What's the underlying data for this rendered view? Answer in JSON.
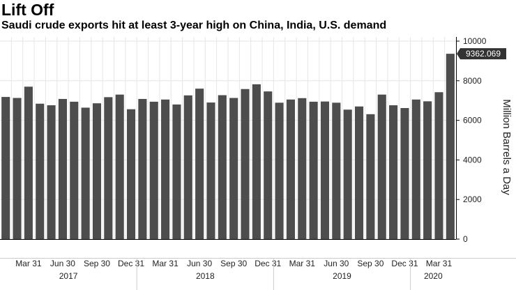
{
  "chart_data": {
    "type": "bar",
    "title": "Lift Off",
    "subtitle": "Saudi crude exports hit at least 3-year high on China, India, U.S. demand",
    "ylabel": "Million Barrels a Day",
    "ylim": [
      0,
      10000
    ],
    "yticks": [
      "0",
      "2000",
      "4000",
      "6000",
      "8000",
      "10000"
    ],
    "ytick_values": [
      0,
      2000,
      4000,
      6000,
      8000,
      10000
    ],
    "xtick_labels": [
      "Mar 31",
      "Jun 30",
      "Sep 30",
      "Dec 31",
      "Mar 31",
      "Jun 30",
      "Sep 30",
      "Dec 31",
      "Mar 31",
      "Jun 30",
      "Sep 30",
      "Dec 31",
      "Mar 31"
    ],
    "xtick_months": [
      "2017-03",
      "2017-06",
      "2017-09",
      "2017-12",
      "2018-03",
      "2018-06",
      "2018-09",
      "2018-12",
      "2019-03",
      "2019-06",
      "2019-09",
      "2019-12",
      "2020-03"
    ],
    "years": [
      "2017",
      "2018",
      "2019",
      "2020"
    ],
    "categories": [
      "2017-01",
      "2017-02",
      "2017-03",
      "2017-04",
      "2017-05",
      "2017-06",
      "2017-07",
      "2017-08",
      "2017-09",
      "2017-10",
      "2017-11",
      "2017-12",
      "2018-01",
      "2018-02",
      "2018-03",
      "2018-04",
      "2018-05",
      "2018-06",
      "2018-07",
      "2018-08",
      "2018-09",
      "2018-10",
      "2018-11",
      "2018-12",
      "2019-01",
      "2019-02",
      "2019-03",
      "2019-04",
      "2019-05",
      "2019-06",
      "2019-07",
      "2019-08",
      "2019-09",
      "2019-10",
      "2019-11",
      "2019-12",
      "2020-01",
      "2020-02",
      "2020-03",
      "2020-04"
    ],
    "values": [
      7180,
      7130,
      7700,
      6840,
      6760,
      7080,
      6940,
      6640,
      6860,
      7170,
      7300,
      6560,
      7080,
      6940,
      7050,
      6800,
      7260,
      7600,
      6900,
      7270,
      7130,
      7580,
      7820,
      7460,
      6890,
      7050,
      7120,
      6940,
      6950,
      6890,
      6540,
      6700,
      6310,
      7300,
      6760,
      6620,
      7050,
      6960,
      7420,
      9362.069
    ],
    "callout": "9362.069",
    "grid": true,
    "colors": {
      "bar": "#4d4d4d",
      "grid": "#e6e6e6",
      "axis": "#000000",
      "callout_bg": "#333333"
    }
  }
}
